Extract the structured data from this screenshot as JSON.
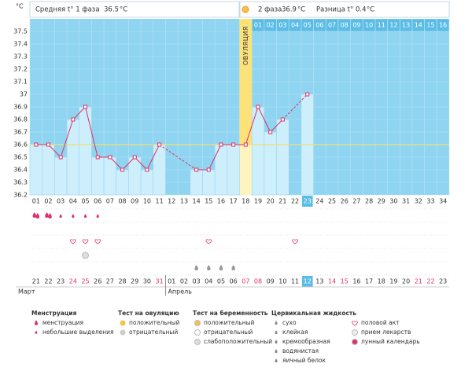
{
  "header": {
    "phase1_label": "Средняя t° 1 фаза",
    "phase1_value": 36.5,
    "unit": "°C",
    "phase2_label": "2 фаза",
    "phase2_value": 36.9,
    "diff_label": "Разница t°",
    "diff_value": 0.4
  },
  "chart_data": {
    "type": "line",
    "y_unit": "°C",
    "categories": [
      "01",
      "02",
      "03",
      "04",
      "05",
      "06",
      "07",
      "08",
      "09",
      "10",
      "11",
      "12",
      "13",
      "14",
      "15",
      "16",
      "17",
      "18",
      "19",
      "20",
      "21",
      "22",
      "23",
      "24",
      "25",
      "26",
      "27",
      "28",
      "29",
      "30",
      "31",
      "32",
      "33",
      "34"
    ],
    "values": [
      36.6,
      36.6,
      36.5,
      36.8,
      36.9,
      36.5,
      36.5,
      36.4,
      36.5,
      36.4,
      36.6,
      null,
      null,
      36.4,
      36.4,
      36.6,
      36.6,
      36.6,
      36.9,
      36.7,
      36.8,
      null,
      37.0,
      null,
      null,
      null,
      null,
      null,
      null,
      null,
      null,
      null,
      null,
      null
    ],
    "color": "#e0306a",
    "bar_color": "#cdeefb",
    "ylim": [
      36.2,
      37.6
    ],
    "yticks": [
      36.2,
      36.3,
      36.4,
      36.5,
      36.6,
      36.7,
      36.8,
      36.9,
      37,
      37.1,
      37.2,
      37.3,
      37.4,
      37.5
    ],
    "cover_line": 36.6,
    "ovulation_label": "ОВУЛЯЦИЯ",
    "ovulation_index": 17,
    "phase2_days": [
      "01",
      "02",
      "03",
      "04",
      "05",
      "06",
      "07",
      "08",
      "09",
      "10",
      "11",
      "12",
      "13",
      "14",
      "15",
      "16"
    ],
    "highlight_index": 22
  },
  "calendar": {
    "dates": [
      "21",
      "22",
      "23",
      "24",
      "25",
      "26",
      "27",
      "28",
      "29",
      "30",
      "31",
      "01",
      "02",
      "03",
      "04",
      "05",
      "06",
      "07",
      "08",
      "09",
      "10",
      "11",
      "12",
      "13",
      "14",
      "15",
      "16",
      "17",
      "18",
      "19",
      "20",
      "21",
      "22",
      "23"
    ],
    "weekend": [
      3,
      4,
      10,
      17,
      18,
      24,
      25,
      31,
      32
    ],
    "months": [
      {
        "label": "Март",
        "start": 0
      },
      {
        "label": "Апрель",
        "start": 11
      }
    ],
    "menstruation_heavy": [
      0,
      1
    ],
    "menstruation_light": [
      2,
      3,
      4,
      5
    ],
    "intercourse": [
      3,
      4,
      5,
      14,
      21
    ],
    "pregnancy_weak": [
      4
    ],
    "egg_white": [
      13,
      14,
      15,
      16
    ]
  },
  "legend": [
    {
      "title": "Менструация",
      "items": [
        "менструация",
        "небольшие выделения"
      ]
    },
    {
      "title": "Тест на овуляцию",
      "items": [
        "положительный",
        "отрицательный"
      ]
    },
    {
      "title": "Тест на беременность",
      "items": [
        "положительный",
        "отрицательный",
        "слабоположительный"
      ]
    },
    {
      "title": "Цервикальная жидкость",
      "items": [
        "сухо",
        "клейкая",
        "кремообразная",
        "водянистая",
        "яичный белок"
      ]
    },
    {
      "items": [
        "половой акт",
        "прием лекарств",
        "лунный календарь"
      ]
    }
  ]
}
